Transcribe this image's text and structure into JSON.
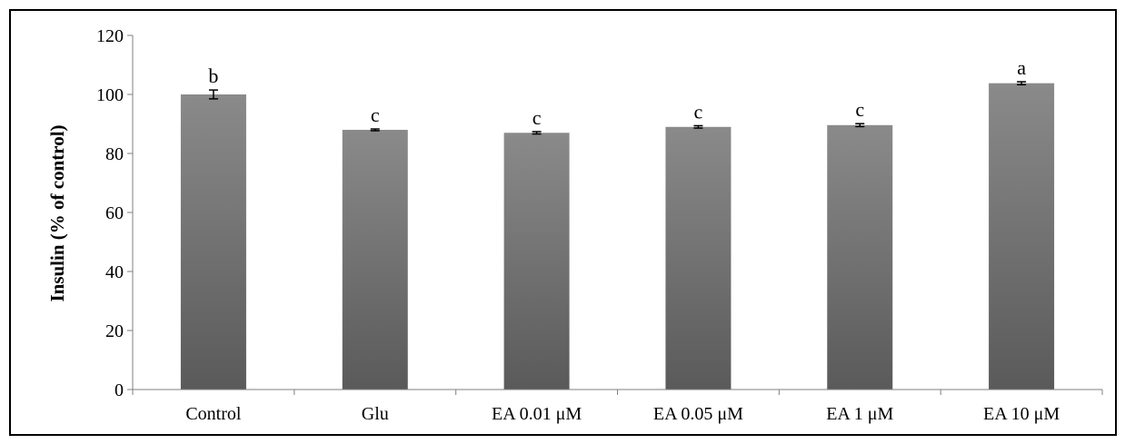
{
  "chart_data": {
    "type": "bar",
    "categories": [
      "Control",
      "Glu",
      "EA 0.01 μM",
      "EA 0.05 μM",
      "EA 1 μM",
      "EA 10 μM"
    ],
    "values": [
      100,
      88,
      87,
      89,
      89.6,
      103.8
    ],
    "errors": [
      1.5,
      0.3,
      0.4,
      0.4,
      0.5,
      0.5
    ],
    "significance": [
      "b",
      "c",
      "c",
      "c",
      "c",
      "a"
    ],
    "title": "",
    "xlabel": "",
    "ylabel": "Insulin (% of control)",
    "ylim": [
      0,
      120
    ],
    "yticks": [
      0,
      20,
      40,
      60,
      80,
      100,
      120
    ],
    "grid": false,
    "legend": "none",
    "colors": {
      "bar_top": "#8a8a8a",
      "bar_bottom": "#5a5a5a",
      "axis": "#7f7f7f",
      "error": "#000000"
    }
  }
}
